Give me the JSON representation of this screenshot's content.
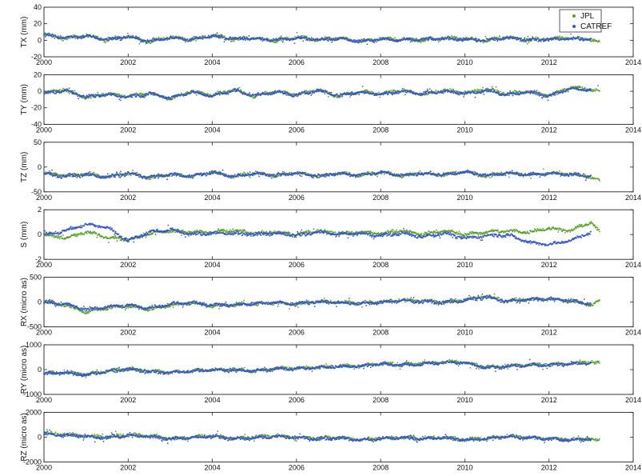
{
  "chart_data": [
    {
      "type": "scatter",
      "ylabel": "TX (mm)",
      "xlim": [
        2000,
        2014
      ],
      "ylim": [
        -20,
        40
      ],
      "yticks": [
        -20,
        0,
        20,
        40
      ],
      "xticks": [
        2000,
        2002,
        2004,
        2006,
        2008,
        2010,
        2012,
        2014
      ],
      "series": [
        {
          "name": "JPL",
          "color": "#5aa02c",
          "x": [
            2000.0,
            2000.5,
            2001.0,
            2001.5,
            2002.0,
            2002.5,
            2003.0,
            2003.5,
            2004.0,
            2004.5,
            2005.0,
            2005.5,
            2006.0,
            2006.5,
            2007.0,
            2007.5,
            2008.0,
            2008.5,
            2009.0,
            2009.5,
            2010.0,
            2010.5,
            2011.0,
            2011.5,
            2012.0,
            2012.5,
            2013.0,
            2013.2
          ],
          "y": [
            8,
            2,
            6,
            0,
            5,
            -2,
            4,
            0,
            6,
            1,
            3,
            -1,
            4,
            0,
            3,
            -2,
            2,
            1,
            0,
            3,
            2,
            -1,
            4,
            0,
            2,
            3,
            1,
            -3
          ]
        },
        {
          "name": "CATREF",
          "color": "#3555c8",
          "x": [
            2000.0,
            2000.5,
            2001.0,
            2001.5,
            2002.0,
            2002.5,
            2003.0,
            2003.5,
            2004.0,
            2004.5,
            2005.0,
            2005.5,
            2006.0,
            2006.5,
            2007.0,
            2007.5,
            2008.0,
            2008.5,
            2009.0,
            2009.5,
            2010.0,
            2010.5,
            2011.0,
            2011.5,
            2012.0,
            2012.5,
            2013.0
          ],
          "y": [
            6,
            3,
            5,
            1,
            4,
            -1,
            3,
            1,
            5,
            2,
            2,
            0,
            3,
            1,
            2,
            -1,
            1,
            0,
            1,
            2,
            1,
            0,
            3,
            1,
            1,
            2,
            1
          ]
        }
      ]
    },
    {
      "type": "scatter",
      "ylabel": "TY (mm)",
      "xlim": [
        2000,
        2014
      ],
      "ylim": [
        -40,
        20
      ],
      "yticks": [
        -40,
        -20,
        0,
        20
      ],
      "xticks": [
        2000,
        2002,
        2004,
        2006,
        2008,
        2010,
        2012,
        2014
      ],
      "series": [
        {
          "name": "JPL",
          "color": "#5aa02c",
          "x": [
            2000.0,
            2000.5,
            2001.0,
            2001.5,
            2002.0,
            2002.5,
            2003.0,
            2003.5,
            2004.0,
            2004.5,
            2005.0,
            2005.5,
            2006.0,
            2006.5,
            2007.0,
            2007.5,
            2008.0,
            2008.5,
            2009.0,
            2009.5,
            2010.0,
            2010.5,
            2011.0,
            2011.5,
            2012.0,
            2012.5,
            2013.0,
            2013.2
          ],
          "y": [
            -2,
            2,
            -8,
            -3,
            -6,
            -2,
            -9,
            0,
            -5,
            2,
            -6,
            0,
            -4,
            2,
            -6,
            0,
            -3,
            1,
            -4,
            1,
            -2,
            2,
            -3,
            0,
            -5,
            5,
            2,
            0
          ]
        },
        {
          "name": "CATREF",
          "color": "#3555c8",
          "x": [
            2000.0,
            2000.5,
            2001.0,
            2001.5,
            2002.0,
            2002.5,
            2003.0,
            2003.5,
            2004.0,
            2004.5,
            2005.0,
            2005.5,
            2006.0,
            2006.5,
            2007.0,
            2007.5,
            2008.0,
            2008.5,
            2009.0,
            2009.5,
            2010.0,
            2010.5,
            2011.0,
            2011.5,
            2012.0,
            2012.5,
            2013.0
          ],
          "y": [
            -3,
            1,
            -7,
            -4,
            -7,
            -3,
            -8,
            -1,
            -6,
            1,
            -5,
            -1,
            -5,
            1,
            -5,
            -1,
            -4,
            0,
            -3,
            0,
            -3,
            1,
            -4,
            -1,
            -6,
            3,
            1
          ]
        }
      ]
    },
    {
      "type": "scatter",
      "ylabel": "TZ (mm)",
      "xlim": [
        2000,
        2014
      ],
      "ylim": [
        -50,
        50
      ],
      "yticks": [
        -50,
        0,
        50
      ],
      "xticks": [
        2000,
        2002,
        2004,
        2006,
        2008,
        2010,
        2012,
        2014
      ],
      "series": [
        {
          "name": "JPL",
          "color": "#5aa02c",
          "x": [
            2000.0,
            2000.5,
            2001.0,
            2001.5,
            2002.0,
            2002.5,
            2003.0,
            2003.5,
            2004.0,
            2004.5,
            2005.0,
            2005.5,
            2006.0,
            2006.5,
            2007.0,
            2007.5,
            2008.0,
            2008.5,
            2009.0,
            2009.5,
            2010.0,
            2010.5,
            2011.0,
            2011.5,
            2012.0,
            2012.5,
            2013.0,
            2013.2
          ],
          "y": [
            -12,
            -18,
            -14,
            -20,
            -12,
            -22,
            -14,
            -19,
            -10,
            -20,
            -12,
            -18,
            -11,
            -19,
            -12,
            -17,
            -10,
            -18,
            -12,
            -16,
            -9,
            -18,
            -11,
            -16,
            -12,
            -14,
            -20,
            -28
          ]
        },
        {
          "name": "CATREF",
          "color": "#3555c8",
          "x": [
            2000.0,
            2000.5,
            2001.0,
            2001.5,
            2002.0,
            2002.5,
            2003.0,
            2003.5,
            2004.0,
            2004.5,
            2005.0,
            2005.5,
            2006.0,
            2006.5,
            2007.0,
            2007.5,
            2008.0,
            2008.5,
            2009.0,
            2009.5,
            2010.0,
            2010.5,
            2011.0,
            2011.5,
            2012.0,
            2012.5,
            2013.0
          ],
          "y": [
            -13,
            -19,
            -15,
            -21,
            -13,
            -21,
            -15,
            -18,
            -11,
            -19,
            -13,
            -17,
            -12,
            -18,
            -13,
            -16,
            -11,
            -17,
            -13,
            -15,
            -10,
            -17,
            -12,
            -15,
            -13,
            -15,
            -18
          ]
        }
      ]
    },
    {
      "type": "scatter",
      "ylabel": "S (mm)",
      "xlim": [
        2000,
        2014
      ],
      "ylim": [
        -2,
        2
      ],
      "yticks": [
        -2,
        0,
        2
      ],
      "xticks": [
        2000,
        2002,
        2004,
        2006,
        2008,
        2010,
        2012,
        2014
      ],
      "series": [
        {
          "name": "JPL",
          "color": "#5aa02c",
          "x": [
            2000.0,
            2000.5,
            2001.0,
            2001.5,
            2002.0,
            2002.5,
            2003.0,
            2003.5,
            2004.0,
            2004.5,
            2005.0,
            2005.5,
            2006.0,
            2006.5,
            2007.0,
            2007.5,
            2008.0,
            2008.5,
            2009.0,
            2009.5,
            2010.0,
            2010.5,
            2011.0,
            2011.5,
            2012.0,
            2012.5,
            2013.0,
            2013.2
          ],
          "y": [
            0.0,
            -0.3,
            0.2,
            -0.2,
            -0.4,
            0.1,
            0.3,
            0.2,
            0.2,
            0.3,
            0.1,
            0.2,
            0.0,
            0.3,
            0.1,
            0.2,
            0.1,
            0.3,
            0.0,
            0.3,
            0.0,
            0.2,
            0.3,
            0.2,
            0.5,
            0.3,
            1.0,
            0.2
          ]
        },
        {
          "name": "CATREF",
          "color": "#3555c8",
          "x": [
            2000.0,
            2000.5,
            2001.0,
            2001.5,
            2002.0,
            2002.5,
            2003.0,
            2003.5,
            2004.0,
            2004.5,
            2005.0,
            2005.5,
            2006.0,
            2006.5,
            2007.0,
            2007.5,
            2008.0,
            2008.5,
            2009.0,
            2009.5,
            2010.0,
            2010.5,
            2011.0,
            2011.5,
            2012.0,
            2012.5,
            2013.0
          ],
          "y": [
            0.0,
            0.3,
            0.8,
            0.6,
            -0.5,
            0.2,
            0.4,
            0.0,
            0.1,
            0.1,
            0.0,
            0.1,
            -0.1,
            0.2,
            0.0,
            0.1,
            -0.1,
            0.1,
            -0.2,
            0.1,
            -0.3,
            -0.1,
            0.0,
            -0.6,
            -0.8,
            -0.5,
            0.2
          ]
        }
      ]
    },
    {
      "type": "scatter",
      "ylabel": "RX (micro as)",
      "xlim": [
        2000,
        2014
      ],
      "ylim": [
        -500,
        500
      ],
      "yticks": [
        -500,
        0,
        500
      ],
      "xticks": [
        2000,
        2002,
        2004,
        2006,
        2008,
        2010,
        2012,
        2014
      ],
      "series": [
        {
          "name": "JPL",
          "color": "#5aa02c",
          "x": [
            2000.0,
            2000.5,
            2001.0,
            2001.5,
            2002.0,
            2002.5,
            2003.0,
            2003.5,
            2004.0,
            2004.5,
            2005.0,
            2005.5,
            2006.0,
            2006.5,
            2007.0,
            2007.5,
            2008.0,
            2008.5,
            2009.0,
            2009.5,
            2010.0,
            2010.5,
            2011.0,
            2011.5,
            2012.0,
            2012.5,
            2013.0,
            2013.2
          ],
          "y": [
            0,
            -60,
            -200,
            -120,
            -80,
            -150,
            -60,
            -20,
            -80,
            -60,
            -40,
            -20,
            -40,
            20,
            0,
            -20,
            0,
            40,
            20,
            0,
            40,
            120,
            20,
            60,
            60,
            20,
            -60,
            20
          ]
        },
        {
          "name": "CATREF",
          "color": "#3555c8",
          "x": [
            2000.0,
            2000.5,
            2001.0,
            2001.5,
            2002.0,
            2002.5,
            2003.0,
            2003.5,
            2004.0,
            2004.5,
            2005.0,
            2005.5,
            2006.0,
            2006.5,
            2007.0,
            2007.5,
            2008.0,
            2008.5,
            2009.0,
            2009.5,
            2010.0,
            2010.5,
            2011.0,
            2011.5,
            2012.0,
            2012.5,
            2013.0
          ],
          "y": [
            0,
            -40,
            -150,
            -100,
            -60,
            -120,
            -40,
            -10,
            -60,
            -50,
            -30,
            -10,
            -30,
            10,
            -10,
            -30,
            -10,
            30,
            10,
            -10,
            30,
            100,
            10,
            50,
            70,
            30,
            -40
          ]
        }
      ]
    },
    {
      "type": "scatter",
      "ylabel": "RY (micro as)",
      "xlim": [
        2000,
        2014
      ],
      "ylim": [
        -1000,
        1000
      ],
      "yticks": [
        -1000,
        0,
        1000
      ],
      "xticks": [
        2000,
        2002,
        2004,
        2006,
        2008,
        2010,
        2012,
        2014
      ],
      "series": [
        {
          "name": "JPL",
          "color": "#5aa02c",
          "x": [
            2000.0,
            2000.5,
            2001.0,
            2001.5,
            2002.0,
            2002.5,
            2003.0,
            2003.5,
            2004.0,
            2004.5,
            2005.0,
            2005.5,
            2006.0,
            2006.5,
            2007.0,
            2007.5,
            2008.0,
            2008.5,
            2009.0,
            2009.5,
            2010.0,
            2010.5,
            2011.0,
            2011.5,
            2012.0,
            2012.5,
            2013.0,
            2013.2
          ],
          "y": [
            -150,
            -100,
            -200,
            -50,
            50,
            -50,
            -100,
            -50,
            0,
            0,
            -50,
            50,
            50,
            100,
            150,
            150,
            250,
            200,
            250,
            300,
            300,
            100,
            150,
            200,
            200,
            250,
            300,
            250
          ]
        },
        {
          "name": "CATREF",
          "color": "#3555c8",
          "x": [
            2000.0,
            2000.5,
            2001.0,
            2001.5,
            2002.0,
            2002.5,
            2003.0,
            2003.5,
            2004.0,
            2004.5,
            2005.0,
            2005.5,
            2006.0,
            2006.5,
            2007.0,
            2007.5,
            2008.0,
            2008.5,
            2009.0,
            2009.5,
            2010.0,
            2010.5,
            2011.0,
            2011.5,
            2012.0,
            2012.5,
            2013.0
          ],
          "y": [
            -180,
            -120,
            -220,
            -80,
            20,
            -80,
            -120,
            -70,
            -20,
            -20,
            -60,
            30,
            30,
            80,
            130,
            130,
            220,
            180,
            230,
            280,
            280,
            80,
            130,
            180,
            180,
            230,
            260
          ]
        }
      ]
    },
    {
      "type": "scatter",
      "ylabel": "RZ (micro as)",
      "xlim": [
        2000,
        2014
      ],
      "ylim": [
        -2000,
        2000
      ],
      "yticks": [
        -2000,
        0,
        2000
      ],
      "xticks": [
        2000,
        2002,
        2004,
        2006,
        2008,
        2010,
        2012,
        2014
      ],
      "series": [
        {
          "name": "JPL",
          "color": "#5aa02c",
          "x": [
            2000.0,
            2000.5,
            2001.0,
            2001.5,
            2002.0,
            2002.5,
            2003.0,
            2003.5,
            2004.0,
            2004.5,
            2005.0,
            2005.5,
            2006.0,
            2006.5,
            2007.0,
            2007.5,
            2008.0,
            2008.5,
            2009.0,
            2009.5,
            2010.0,
            2010.5,
            2011.0,
            2011.5,
            2012.0,
            2012.5,
            2013.0,
            2013.2
          ],
          "y": [
            300,
            200,
            100,
            0,
            200,
            100,
            -100,
            0,
            100,
            -100,
            0,
            100,
            0,
            -100,
            0,
            -200,
            -100,
            0,
            -100,
            0,
            -200,
            -100,
            100,
            0,
            -100,
            -200,
            -100,
            -300
          ]
        },
        {
          "name": "CATREF",
          "color": "#3555c8",
          "x": [
            2000.0,
            2000.5,
            2001.0,
            2001.5,
            2002.0,
            2002.5,
            2003.0,
            2003.5,
            2004.0,
            2004.5,
            2005.0,
            2005.5,
            2006.0,
            2006.5,
            2007.0,
            2007.5,
            2008.0,
            2008.5,
            2009.0,
            2009.5,
            2010.0,
            2010.5,
            2011.0,
            2011.5,
            2012.0,
            2012.5,
            2013.0
          ],
          "y": [
            250,
            150,
            50,
            -50,
            150,
            50,
            -150,
            -50,
            50,
            -150,
            -50,
            50,
            -50,
            -150,
            -50,
            -250,
            -150,
            -50,
            -150,
            -50,
            -250,
            -150,
            50,
            -50,
            -150,
            -250,
            -150
          ]
        }
      ]
    }
  ],
  "legend": {
    "placement": "top-right",
    "entries": [
      {
        "label": "JPL",
        "color": "#5aa02c"
      },
      {
        "label": "CATREF",
        "color": "#3555c8"
      }
    ]
  }
}
